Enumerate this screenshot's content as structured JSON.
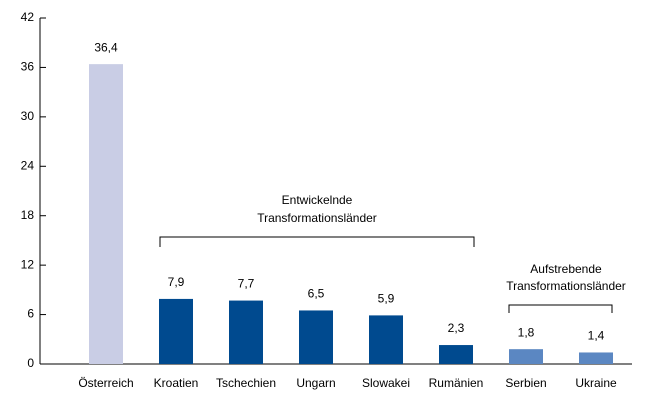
{
  "chart_data": {
    "type": "bar",
    "categories": [
      "Österreich",
      "Kroatien",
      "Tschechien",
      "Ungarn",
      "Slowakei",
      "Rumänien",
      "Serbien",
      "Ukraine"
    ],
    "values": [
      36.4,
      7.9,
      7.7,
      6.5,
      5.9,
      2.3,
      1.8,
      1.4
    ],
    "value_labels": [
      "36,4",
      "7,9",
      "7,7",
      "6,5",
      "5,9",
      "2,3",
      "1,8",
      "1,4"
    ],
    "colors": [
      "#c9cde5",
      "#004a8f",
      "#004a8f",
      "#004a8f",
      "#004a8f",
      "#004a8f",
      "#5b87c2",
      "#5b87c2"
    ],
    "ylim": [
      0,
      42
    ],
    "yticks": [
      0,
      6,
      12,
      18,
      24,
      30,
      36,
      42
    ],
    "grid": false,
    "annotations": [
      [
        "Entwickelnde",
        "Transformationsländer"
      ],
      [
        "Aufstrebende",
        "Transformationsländer"
      ]
    ]
  }
}
